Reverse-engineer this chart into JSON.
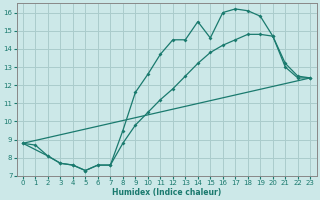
{
  "xlabel": "Humidex (Indice chaleur)",
  "bg_color": "#cce8e8",
  "grid_color": "#aacccc",
  "line_color": "#1a7a6e",
  "xlim": [
    -0.5,
    23.5
  ],
  "ylim": [
    7,
    16.5
  ],
  "xticks": [
    0,
    1,
    2,
    3,
    4,
    5,
    6,
    7,
    8,
    9,
    10,
    11,
    12,
    13,
    14,
    15,
    16,
    17,
    18,
    19,
    20,
    21,
    22,
    23
  ],
  "yticks": [
    7,
    8,
    9,
    10,
    11,
    12,
    13,
    14,
    15,
    16
  ],
  "line1_x": [
    0,
    1,
    2,
    3,
    4,
    5,
    6,
    7,
    8,
    9,
    10,
    11,
    12,
    13,
    14,
    15,
    16,
    17,
    18,
    19,
    20,
    21,
    22,
    23
  ],
  "line1_y": [
    8.8,
    8.7,
    8.1,
    7.7,
    7.6,
    7.3,
    7.6,
    7.6,
    9.5,
    11.6,
    12.6,
    13.7,
    14.5,
    14.5,
    15.5,
    14.6,
    16.0,
    16.2,
    16.1,
    15.8,
    14.7,
    13.0,
    12.4,
    12.4
  ],
  "line2_x": [
    0,
    2,
    3,
    4,
    5,
    6,
    7,
    8,
    9,
    10,
    11,
    12,
    13,
    14,
    15,
    16,
    17,
    18,
    19,
    20,
    21,
    22,
    23
  ],
  "line2_y": [
    8.8,
    8.1,
    7.7,
    7.6,
    7.3,
    7.6,
    7.6,
    8.8,
    9.8,
    10.5,
    11.2,
    11.8,
    12.5,
    13.2,
    13.8,
    14.2,
    14.5,
    14.8,
    14.8,
    14.7,
    13.2,
    12.5,
    12.4
  ],
  "line3_x": [
    0,
    23
  ],
  "line3_y": [
    8.8,
    12.4
  ]
}
